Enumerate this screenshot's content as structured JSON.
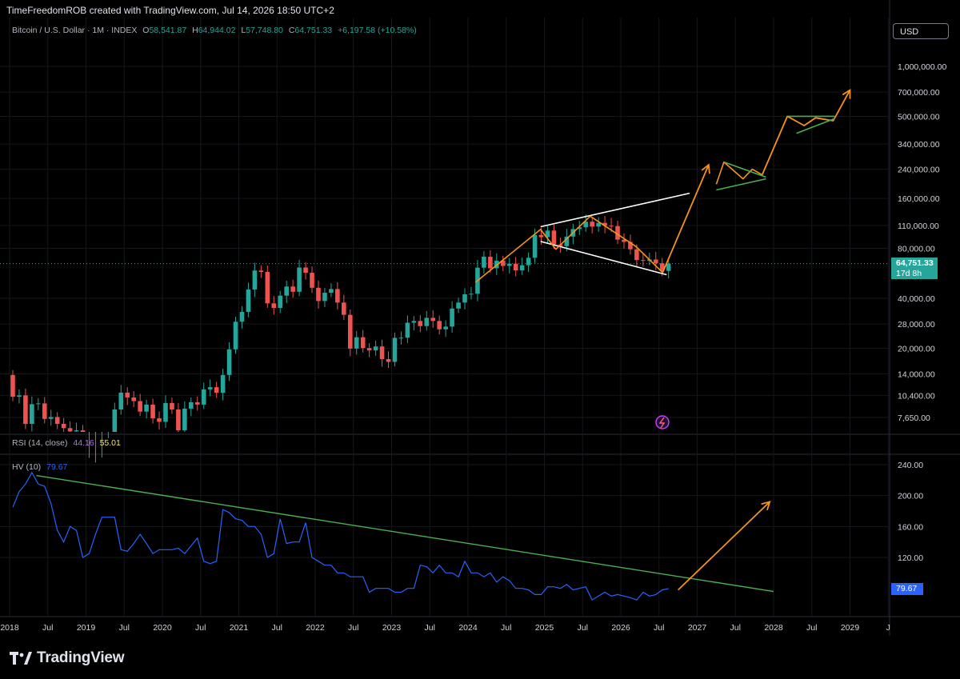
{
  "header": {
    "author": "TimeFreedomROB created with TradingView.com, Jul 14, 2026 18:50 UTC+2",
    "symbol": "Bitcoin / U.S. Dollar · 1M · INDEX",
    "open_label": "O",
    "open": "58,541.87",
    "high_label": "H",
    "high": "64,944.02",
    "low_label": "L",
    "low": "57,748.80",
    "close_label": "C",
    "close": "64,751.33",
    "change": "+6,197.58 (+10.58%)"
  },
  "currency_button": "USD",
  "last_price": {
    "value": "64,751.33",
    "countdown": "17d 8h"
  },
  "rsi_legend": {
    "name": "RSI (14, close)",
    "v1": "44.16",
    "v2": "55.01"
  },
  "hv_legend": {
    "name": "HV (10)",
    "value": "79.67"
  },
  "hv_last": "79.67",
  "brand": "TradingView",
  "colors": {
    "up": "#26a69a",
    "down": "#ef5350",
    "hv": "#2962ff",
    "trend": "#4caf50",
    "projection": "#f7931a",
    "wedge": "#ffffff"
  },
  "chart_data": [
    {
      "type": "candlestick",
      "scale": "log",
      "y_ticks": [
        "1,000,000.00",
        "700,000.00",
        "500,000.00",
        "340,000.00",
        "240,000.00",
        "160,000.00",
        "110,000.00",
        "80,000.00",
        "40,000.00",
        "28,000.00",
        "20,000.00",
        "14,000.00",
        "10,400.00",
        "7,650.00"
      ],
      "y_tick_values": [
        1000000,
        700000,
        500000,
        340000,
        240000,
        160000,
        110000,
        80000,
        40000,
        28000,
        20000,
        14000,
        10400,
        7650
      ],
      "x_ticks": [
        "2018",
        "Jul",
        "2019",
        "Jul",
        "2020",
        "Jul",
        "2021",
        "Jul",
        "2022",
        "Jul",
        "2023",
        "Jul",
        "2024",
        "Jul",
        "2025",
        "Jul",
        "2026",
        "Jul",
        "2027",
        "Jul",
        "2028",
        "Jul",
        "2029",
        "J"
      ],
      "x_tick_t": [
        2018.0,
        2018.5,
        2019.0,
        2019.5,
        2020.0,
        2020.5,
        2021.0,
        2021.5,
        2022.0,
        2022.5,
        2023.0,
        2023.5,
        2024.0,
        2024.5,
        2025.0,
        2025.5,
        2026.0,
        2026.5,
        2027.0,
        2027.5,
        2028.0,
        2028.5,
        2029.0,
        2029.5
      ],
      "closes": [
        10200,
        10400,
        7000,
        9200,
        9300,
        7500,
        7700,
        7000,
        6600,
        6300,
        6400,
        4000,
        3700,
        3450,
        4100,
        5300,
        8550,
        10800,
        10100,
        9600,
        8300,
        9150,
        7560,
        7200,
        9350,
        8550,
        6400,
        8650,
        9450,
        9150,
        11300,
        11650,
        10780,
        13800,
        19700,
        28900,
        33100,
        45200,
        58800,
        57700,
        37300,
        35000,
        41500,
        47100,
        43800,
        61300,
        57000,
        46300,
        38500,
        43200,
        45500,
        37700,
        31800,
        19900,
        23300,
        20050,
        19400,
        20500,
        17200,
        16550,
        23100,
        23150,
        28500,
        29200,
        27200,
        30500,
        29200,
        26000,
        27000,
        34700,
        37700,
        42300,
        42600,
        61200,
        71300,
        60700,
        67500,
        62700,
        64700,
        58900,
        63300,
        70200,
        96400,
        93400,
        102400,
        84400,
        82500,
        94200,
        104600,
        107200,
        115800,
        108200,
        114000,
        109600,
        109000,
        90300,
        87500,
        79000,
        68000,
        67300,
        68500,
        65000,
        58500,
        64751
      ],
      "drawings": {
        "wedge_upper": [
          {
            "t": 2024.95,
            "price": 108000
          },
          {
            "t": 2026.9,
            "price": 172000
          }
        ],
        "wedge_lower": [
          {
            "t": 2024.95,
            "price": 88000
          },
          {
            "t": 2026.6,
            "price": 55500
          }
        ],
        "orange_path": [
          {
            "t": 2024.1,
            "price": 50000
          },
          {
            "t": 2024.95,
            "price": 104000
          },
          {
            "t": 2025.15,
            "price": 79000
          },
          {
            "t": 2025.6,
            "price": 125000
          },
          {
            "t": 2026.2,
            "price": 82000
          },
          {
            "t": 2026.55,
            "price": 57000
          }
        ],
        "projection_1": [
          {
            "t": 2026.55,
            "price": 57500
          },
          {
            "t": 2027.15,
            "price": 255000
          }
        ],
        "cluster_1": [
          {
            "t": 2027.25,
            "price": 195000
          },
          {
            "t": 2027.35,
            "price": 265000
          },
          {
            "t": 2027.6,
            "price": 210000
          },
          {
            "t": 2027.72,
            "price": 240000
          },
          {
            "t": 2027.85,
            "price": 222000
          }
        ],
        "projection_2": [
          {
            "t": 2027.85,
            "price": 222000
          },
          {
            "t": 2028.18,
            "price": 500000
          },
          {
            "t": 2028.4,
            "price": 440000
          },
          {
            "t": 2028.55,
            "price": 490000
          },
          {
            "t": 2028.78,
            "price": 470000
          },
          {
            "t": 2029.0,
            "price": 720000
          }
        ],
        "green_flag_1": [
          {
            "t": 2027.25,
            "price": 180000
          },
          {
            "t": 2027.9,
            "price": 210000
          }
        ],
        "green_flag_1b": [
          {
            "t": 2027.35,
            "price": 265000
          },
          {
            "t": 2027.9,
            "price": 215000
          }
        ],
        "green_flag_2": [
          {
            "t": 2028.3,
            "price": 395000
          },
          {
            "t": 2028.8,
            "price": 485000
          }
        ],
        "green_flag_2b": [
          {
            "t": 2028.18,
            "price": 500000
          },
          {
            "t": 2028.8,
            "price": 500000
          }
        ]
      }
    },
    {
      "type": "line",
      "name": "HV (10)",
      "y_ticks": [
        "240.00",
        "200.00",
        "160.00",
        "120.00"
      ],
      "y_tick_values": [
        240,
        200,
        160,
        120
      ],
      "values": [
        185,
        205,
        215,
        230,
        215,
        212,
        190,
        155,
        140,
        160,
        155,
        120,
        125,
        150,
        172,
        172,
        172,
        130,
        128,
        138,
        150,
        138,
        125,
        130,
        130,
        130,
        132,
        125,
        135,
        145,
        115,
        112,
        115,
        182,
        178,
        170,
        168,
        160,
        160,
        150,
        120,
        125,
        170,
        138,
        140,
        140,
        165,
        120,
        115,
        110,
        110,
        100,
        100,
        95,
        95,
        95,
        75,
        80,
        80,
        80,
        75,
        75,
        80,
        80,
        110,
        108,
        100,
        110,
        100,
        100,
        95,
        115,
        100,
        100,
        95,
        100,
        88,
        95,
        90,
        80,
        80,
        78,
        72,
        72,
        82,
        82,
        80,
        85,
        78,
        80,
        82,
        65,
        70,
        75,
        70,
        72,
        70,
        68,
        65,
        75,
        70,
        72,
        78,
        79.67
      ],
      "trendline": [
        {
          "t": 2018.35,
          "v": 226
        },
        {
          "t": 2028.0,
          "v": 76
        }
      ],
      "projection": [
        {
          "t": 2026.75,
          "v": 78
        },
        {
          "t": 2027.95,
          "v": 192
        }
      ]
    }
  ]
}
